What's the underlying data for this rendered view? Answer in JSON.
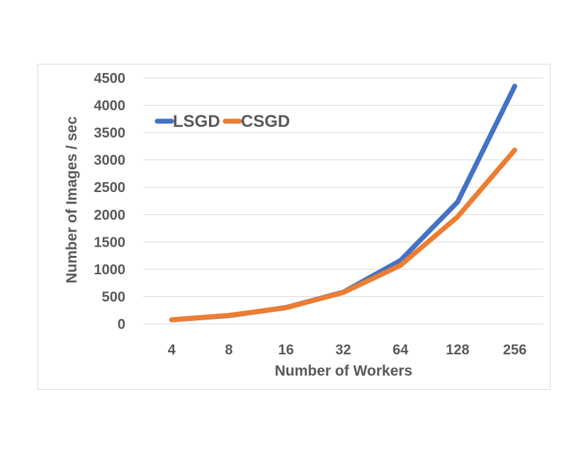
{
  "chart_data": {
    "type": "line",
    "title": "",
    "xlabel": "Number of Workers",
    "ylabel": "Number of Images / sec",
    "categories": [
      "4",
      "8",
      "16",
      "32",
      "64",
      "128",
      "256"
    ],
    "ylim": [
      0,
      4500
    ],
    "yticks": [
      "0",
      "500",
      "1000",
      "1500",
      "2000",
      "2500",
      "3000",
      "3500",
      "4000",
      "4500"
    ],
    "grid": "horizontal",
    "legend_position": "top-left",
    "series": [
      {
        "name": "LSGD",
        "color": "#4472C4",
        "values": [
          75,
          150,
          300,
          580,
          1160,
          2230,
          4350
        ]
      },
      {
        "name": "CSGD",
        "color": "#ED7D31",
        "values": [
          75,
          155,
          295,
          575,
          1070,
          1960,
          3180
        ]
      }
    ]
  }
}
